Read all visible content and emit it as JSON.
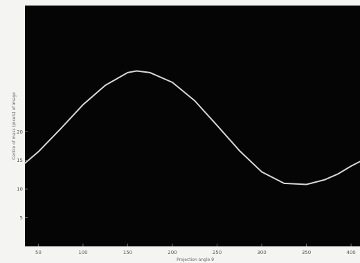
{
  "chart_data": {
    "type": "line",
    "title": "",
    "xlabel": "Projection angle θ",
    "ylabel": "Centre of mass (pixels) of image",
    "xlim": [
      35,
      410
    ],
    "ylim": [
      0,
      42
    ],
    "x_ticks": [
      "50",
      "100",
      "150",
      "200",
      "250",
      "300",
      "350",
      "400"
    ],
    "y_ticks": [
      "5",
      "10",
      "15",
      "20"
    ],
    "grid": false,
    "legend": "none",
    "series": [
      {
        "x": [
          35,
          50,
          75,
          100,
          125,
          150,
          160,
          175,
          200,
          225,
          250,
          275,
          300,
          325,
          350,
          370,
          385,
          400,
          410
        ],
        "y": [
          14.5,
          16.5,
          20.5,
          24.7,
          28.1,
          30.3,
          30.6,
          30.3,
          28.6,
          25.4,
          21.1,
          16.7,
          13.0,
          11.0,
          10.8,
          11.6,
          12.6,
          14.0,
          14.8
        ]
      }
    ],
    "colors": {
      "background": "#050505",
      "line": "#d8d8d8",
      "page": "#f4f4f2"
    }
  }
}
